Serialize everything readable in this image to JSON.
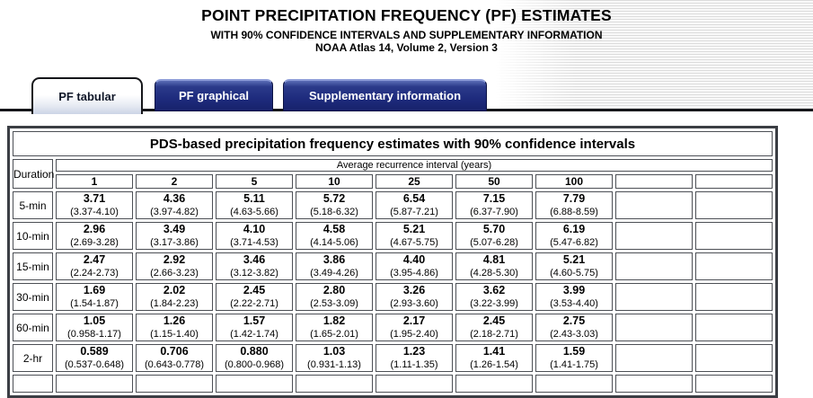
{
  "header": {
    "title": "POINT PRECIPITATION FREQUENCY (PF) ESTIMATES",
    "subtitle": "WITH 90% CONFIDENCE INTERVALS AND SUPPLEMENTARY INFORMATION",
    "edition": "NOAA Atlas 14, Volume 2, Version 3"
  },
  "tabs": [
    {
      "label": "PF tabular",
      "active": true
    },
    {
      "label": "PF graphical",
      "active": false
    },
    {
      "label": "Supplementary information",
      "active": false
    }
  ],
  "table": {
    "title": "PDS-based precipitation frequency estimates with 90% confidence intervals",
    "duration_header": "Duration",
    "ari_header": "Average recurrence interval (years)",
    "ari_columns": [
      "1",
      "2",
      "5",
      "10",
      "25",
      "50",
      "100"
    ],
    "rows": [
      {
        "duration": "5-min",
        "cells": [
          {
            "value": "3.71",
            "ci": "(3.37-4.10)"
          },
          {
            "value": "4.36",
            "ci": "(3.97-4.82)"
          },
          {
            "value": "5.11",
            "ci": "(4.63-5.66)"
          },
          {
            "value": "5.72",
            "ci": "(5.18-6.32)"
          },
          {
            "value": "6.54",
            "ci": "(5.87-7.21)"
          },
          {
            "value": "7.15",
            "ci": "(6.37-7.90)"
          },
          {
            "value": "7.79",
            "ci": "(6.88-8.59)"
          }
        ]
      },
      {
        "duration": "10-min",
        "cells": [
          {
            "value": "2.96",
            "ci": "(2.69-3.28)"
          },
          {
            "value": "3.49",
            "ci": "(3.17-3.86)"
          },
          {
            "value": "4.10",
            "ci": "(3.71-4.53)"
          },
          {
            "value": "4.58",
            "ci": "(4.14-5.06)"
          },
          {
            "value": "5.21",
            "ci": "(4.67-5.75)"
          },
          {
            "value": "5.70",
            "ci": "(5.07-6.28)"
          },
          {
            "value": "6.19",
            "ci": "(5.47-6.82)"
          }
        ]
      },
      {
        "duration": "15-min",
        "cells": [
          {
            "value": "2.47",
            "ci": "(2.24-2.73)"
          },
          {
            "value": "2.92",
            "ci": "(2.66-3.23)"
          },
          {
            "value": "3.46",
            "ci": "(3.12-3.82)"
          },
          {
            "value": "3.86",
            "ci": "(3.49-4.26)"
          },
          {
            "value": "4.40",
            "ci": "(3.95-4.86)"
          },
          {
            "value": "4.81",
            "ci": "(4.28-5.30)"
          },
          {
            "value": "5.21",
            "ci": "(4.60-5.75)"
          }
        ]
      },
      {
        "duration": "30-min",
        "cells": [
          {
            "value": "1.69",
            "ci": "(1.54-1.87)"
          },
          {
            "value": "2.02",
            "ci": "(1.84-2.23)"
          },
          {
            "value": "2.45",
            "ci": "(2.22-2.71)"
          },
          {
            "value": "2.80",
            "ci": "(2.53-3.09)"
          },
          {
            "value": "3.26",
            "ci": "(2.93-3.60)"
          },
          {
            "value": "3.62",
            "ci": "(3.22-3.99)"
          },
          {
            "value": "3.99",
            "ci": "(3.53-4.40)"
          }
        ]
      },
      {
        "duration": "60-min",
        "cells": [
          {
            "value": "1.05",
            "ci": "(0.958-1.17)"
          },
          {
            "value": "1.26",
            "ci": "(1.15-1.40)"
          },
          {
            "value": "1.57",
            "ci": "(1.42-1.74)"
          },
          {
            "value": "1.82",
            "ci": "(1.65-2.01)"
          },
          {
            "value": "2.17",
            "ci": "(1.95-2.40)"
          },
          {
            "value": "2.45",
            "ci": "(2.18-2.71)"
          },
          {
            "value": "2.75",
            "ci": "(2.43-3.03)"
          }
        ]
      },
      {
        "duration": "2-hr",
        "cells": [
          {
            "value": "0.589",
            "ci": "(0.537-0.648)"
          },
          {
            "value": "0.706",
            "ci": "(0.643-0.778)"
          },
          {
            "value": "0.880",
            "ci": "(0.800-0.968)"
          },
          {
            "value": "1.03",
            "ci": "(0.931-1.13)"
          },
          {
            "value": "1.23",
            "ci": "(1.11-1.35)"
          },
          {
            "value": "1.41",
            "ci": "(1.26-1.54)"
          },
          {
            "value": "1.59",
            "ci": "(1.41-1.75)"
          }
        ]
      }
    ]
  },
  "colors": {
    "tab_navy": "#1e2b7d",
    "tab_active_text": "#101728",
    "table_border": "#3b3e44",
    "cell_border": "#4c4f55",
    "stripe_gray": "#dcdcdc"
  }
}
